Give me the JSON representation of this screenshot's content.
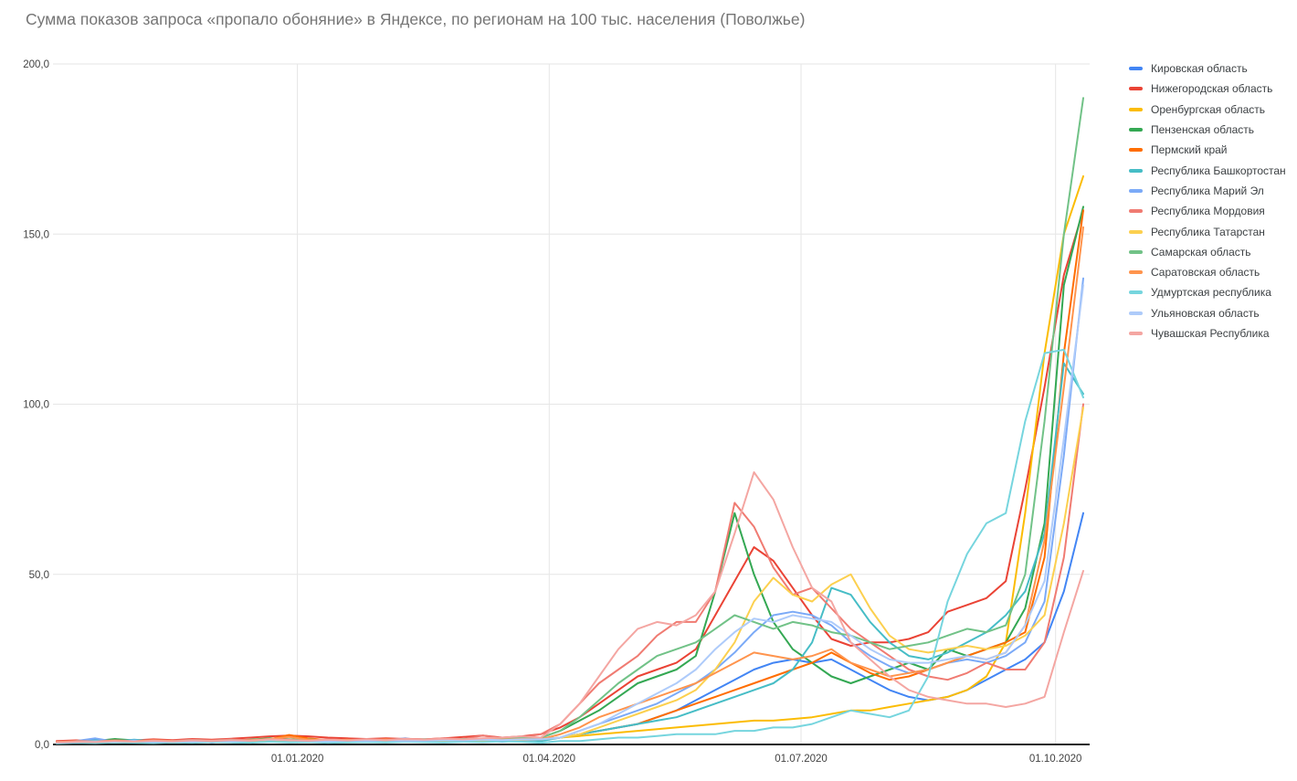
{
  "chart_data": {
    "type": "line",
    "title": "Сумма показов запроса «пропало обоняние» в Яндексе, по регионам на 100 тыс. населения (Поволжье)",
    "xlabel": "",
    "ylabel": "",
    "ylim": [
      0,
      200
    ],
    "grid": true,
    "legend_position": "right",
    "y_ticks": [
      {
        "value": 0,
        "label": "0,0"
      },
      {
        "value": 50,
        "label": "50,0"
      },
      {
        "value": 100,
        "label": "100,0"
      },
      {
        "value": 150,
        "label": "150,0"
      },
      {
        "value": 200,
        "label": "200,0"
      }
    ],
    "x_ticks": [
      {
        "label": "01.01.2020",
        "week": 12.43
      },
      {
        "label": "01.04.2020",
        "week": 25.43
      },
      {
        "label": "01.07.2020",
        "week": 38.43
      },
      {
        "label": "01.10.2020",
        "week": 51.57
      }
    ],
    "x_unit": "weeks from 06.10.2019 to 11.10.2020",
    "n_points": 54,
    "series": [
      {
        "name": "Кировская область",
        "color": "#4285F4",
        "values": [
          0.5,
          0.8,
          1.5,
          0.7,
          1.2,
          0.6,
          0.8,
          1,
          0.6,
          0.9,
          0.7,
          0.8,
          1,
          0.8,
          0.6,
          0.9,
          0.7,
          1,
          1.4,
          0.8,
          1.8,
          0.9,
          1.2,
          0.8,
          1.2,
          1.5,
          2,
          3,
          4,
          5,
          6,
          8,
          10,
          13,
          16,
          19,
          22,
          24,
          25,
          24,
          25,
          22,
          19,
          16,
          14,
          13,
          14,
          16,
          19,
          22,
          25,
          30,
          45,
          68
        ]
      },
      {
        "name": "Нижегородская область",
        "color": "#EA4335",
        "values": [
          1,
          1.2,
          1,
          1.4,
          1.2,
          1.5,
          1.3,
          1.6,
          1.4,
          1.7,
          2,
          2.4,
          2.6,
          2.4,
          2,
          1.8,
          1.6,
          1.8,
          1.6,
          1.5,
          1.8,
          2.2,
          2.6,
          2,
          2.4,
          3,
          5,
          8,
          12,
          16,
          20,
          22,
          24,
          28,
          38,
          48,
          58,
          54,
          46,
          38,
          31,
          29,
          30,
          30,
          31,
          33,
          39,
          41,
          43,
          48,
          75,
          105,
          138,
          157
        ]
      },
      {
        "name": "Оренбургская область",
        "color": "#FBBC04",
        "values": [
          0.4,
          0.6,
          0.5,
          0.8,
          0.6,
          0.5,
          0.7,
          0.6,
          0.8,
          0.7,
          0.9,
          1.2,
          1,
          0.8,
          0.7,
          0.9,
          0.8,
          0.7,
          0.9,
          0.8,
          1,
          0.9,
          0.8,
          1,
          1.2,
          1.5,
          2,
          2.5,
          3,
          3.5,
          4,
          4.5,
          5,
          5.5,
          6,
          6.5,
          7,
          7,
          7.5,
          8,
          9,
          10,
          10,
          11,
          12,
          13,
          14,
          16,
          20,
          30,
          68,
          115,
          150,
          167
        ]
      },
      {
        "name": "Пензенская область",
        "color": "#34A853",
        "values": [
          0.6,
          0.8,
          1,
          1.6,
          1.2,
          0.8,
          1,
          1.2,
          0.9,
          1.1,
          1.4,
          1.8,
          1.5,
          1.2,
          1,
          1.2,
          1,
          1.3,
          1.1,
          1,
          1.2,
          1.4,
          1.2,
          1.4,
          1.6,
          2,
          4,
          7,
          10,
          14,
          18,
          20,
          22,
          26,
          45,
          68,
          50,
          36,
          28,
          24,
          20,
          18,
          20,
          22,
          24,
          22,
          28,
          26,
          28,
          30,
          40,
          65,
          135,
          158
        ]
      },
      {
        "name": "Пермский край",
        "color": "#FF6D01",
        "values": [
          0.5,
          0.7,
          0.6,
          0.9,
          0.7,
          0.6,
          0.8,
          0.7,
          0.9,
          0.8,
          1,
          1.5,
          2.8,
          1.8,
          1.2,
          1,
          0.9,
          1.1,
          0.9,
          1,
          1.1,
          1,
          1.2,
          1.1,
          1.3,
          1.5,
          2,
          3,
          4,
          5,
          6,
          8,
          10,
          12,
          14,
          16,
          18,
          20,
          22,
          24,
          27,
          24,
          21,
          19,
          20,
          22,
          24,
          26,
          28,
          30,
          33,
          55,
          115,
          157
        ]
      },
      {
        "name": "Республика Башкортостан",
        "color": "#46BDC6",
        "values": [
          0.6,
          0.8,
          1.2,
          0.9,
          1.4,
          1,
          0.8,
          1.1,
          0.9,
          1,
          1.2,
          1.4,
          1.2,
          1,
          0.9,
          1.1,
          1,
          0.9,
          1.1,
          1,
          1.2,
          1.1,
          1.3,
          1.2,
          1.4,
          1,
          2,
          3,
          4,
          5,
          6,
          7,
          8,
          10,
          12,
          14,
          16,
          18,
          22,
          30,
          46,
          44,
          36,
          30,
          26,
          25,
          27,
          30,
          33,
          38,
          45,
          62,
          112,
          103
        ]
      },
      {
        "name": "Республика Марий Эл",
        "color": "#7BAAF7",
        "values": [
          0.5,
          1,
          1.8,
          0.8,
          1.2,
          0.7,
          0.9,
          1.3,
          0.8,
          1,
          0.9,
          1.1,
          1,
          1.2,
          0.9,
          1.1,
          1,
          1.2,
          1.8,
          1,
          1.2,
          1.4,
          1.2,
          1.5,
          1.3,
          1.5,
          2,
          4,
          6,
          8,
          10,
          12,
          15,
          18,
          22,
          27,
          33,
          38,
          39,
          38,
          35,
          30,
          26,
          23,
          21,
          22,
          24,
          25,
          24,
          26,
          30,
          42,
          85,
          137
        ]
      },
      {
        "name": "Республика Мордовия",
        "color": "#F07B72",
        "values": [
          0.8,
          1,
          0.9,
          1.2,
          1,
          1.3,
          1.1,
          1.4,
          1.2,
          1.5,
          1.3,
          1.6,
          1.4,
          1.2,
          1.5,
          1.3,
          1.6,
          1.4,
          1.7,
          1.5,
          1.8,
          1.6,
          2.6,
          1.8,
          2,
          3,
          6,
          12,
          18,
          22,
          26,
          32,
          36,
          36,
          45,
          71,
          64,
          52,
          44,
          46,
          40,
          34,
          30,
          26,
          22,
          20,
          19,
          21,
          24,
          22,
          22,
          30,
          55,
          100
        ]
      },
      {
        "name": "Республика Татарстан",
        "color": "#FCD04F",
        "values": [
          0.5,
          0.7,
          0.6,
          0.9,
          0.7,
          1,
          0.8,
          0.7,
          0.9,
          0.8,
          1,
          1.3,
          1.1,
          0.9,
          0.8,
          1,
          0.9,
          1.1,
          1,
          0.9,
          1.1,
          1,
          1.2,
          1.1,
          1.4,
          1.5,
          2,
          3,
          5,
          7,
          9,
          11,
          13,
          16,
          22,
          30,
          42,
          49,
          44,
          42,
          47,
          50,
          40,
          32,
          28,
          27,
          28,
          29,
          28,
          29,
          32,
          38,
          65,
          99
        ]
      },
      {
        "name": "Самарская область",
        "color": "#71C287",
        "values": [
          0.6,
          0.8,
          0.7,
          1,
          0.8,
          1.1,
          0.9,
          1.2,
          1,
          1.3,
          1.1,
          1.4,
          1.2,
          1.5,
          1.1,
          1.3,
          1.2,
          1.4,
          1.2,
          1.5,
          1.3,
          1.6,
          1.4,
          1.7,
          1.9,
          2,
          4,
          8,
          13,
          18,
          22,
          26,
          28,
          30,
          34,
          38,
          36,
          34,
          36,
          35,
          33,
          32,
          30,
          28,
          29,
          30,
          32,
          34,
          33,
          35,
          50,
          95,
          150,
          190
        ]
      },
      {
        "name": "Саратовская область",
        "color": "#FF944D",
        "values": [
          0.7,
          0.9,
          0.8,
          1.1,
          0.9,
          1.2,
          1,
          0.9,
          1.1,
          1,
          1.3,
          1.6,
          2.2,
          1.4,
          1.2,
          1.4,
          1.2,
          1.5,
          1.3,
          1.2,
          1.4,
          1.3,
          1.5,
          1.4,
          1.6,
          1.5,
          3,
          5,
          8,
          10,
          12,
          14,
          16,
          18,
          21,
          24,
          27,
          26,
          25,
          26,
          28,
          24,
          22,
          20,
          21,
          22,
          24,
          26,
          25,
          27,
          35,
          60,
          105,
          152
        ]
      },
      {
        "name": "Удмуртская республика",
        "color": "#76D5DE",
        "values": [
          0.3,
          0.5,
          0.4,
          0.6,
          0.5,
          0.4,
          0.6,
          0.5,
          0.7,
          0.6,
          0.5,
          0.8,
          0.6,
          0.7,
          0.5,
          0.6,
          0.7,
          0.6,
          0.8,
          0.7,
          0.6,
          0.8,
          0.7,
          0.9,
          0.8,
          0.5,
          1,
          1,
          1.5,
          2,
          2,
          2.5,
          3,
          3,
          3,
          4,
          4,
          5,
          5,
          6,
          8,
          10,
          9,
          8,
          10,
          20,
          42,
          56,
          65,
          68,
          95,
          115,
          116,
          102
        ]
      },
      {
        "name": "Ульяновская область",
        "color": "#AECBFA",
        "values": [
          0.5,
          0.7,
          0.9,
          0.8,
          1,
          0.7,
          0.9,
          0.8,
          1,
          0.9,
          1.1,
          1.4,
          1.2,
          1,
          0.9,
          1.1,
          1,
          1.2,
          1,
          1.1,
          1.3,
          1.2,
          1.4,
          1.3,
          1.5,
          1.5,
          2,
          4,
          6,
          9,
          12,
          15,
          18,
          22,
          28,
          33,
          37,
          36,
          38,
          37,
          36,
          32,
          28,
          25,
          24,
          24,
          25,
          26,
          25,
          27,
          35,
          48,
          90,
          135
        ]
      },
      {
        "name": "Чувашская Республика",
        "color": "#F4A6A2",
        "values": [
          0.6,
          0.8,
          0.7,
          1,
          0.8,
          1.1,
          0.9,
          1.2,
          1,
          1.3,
          1.1,
          1.5,
          1.3,
          1.1,
          1.4,
          1.2,
          1.5,
          1.3,
          1.6,
          1.4,
          1.7,
          1.5,
          1.8,
          2,
          2.4,
          2,
          6,
          12,
          20,
          28,
          34,
          36,
          35,
          38,
          45,
          62,
          80,
          72,
          58,
          46,
          42,
          30,
          25,
          20,
          16,
          14,
          13,
          12,
          12,
          11,
          12,
          14,
          33,
          51
        ]
      }
    ],
    "colors": {
      "background": "#ffffff",
      "title_text": "#757575",
      "tick_text": "#424242",
      "legend_text": "#3c4043",
      "gridline": "#e6e6e6",
      "axis_line": "#212121"
    }
  }
}
